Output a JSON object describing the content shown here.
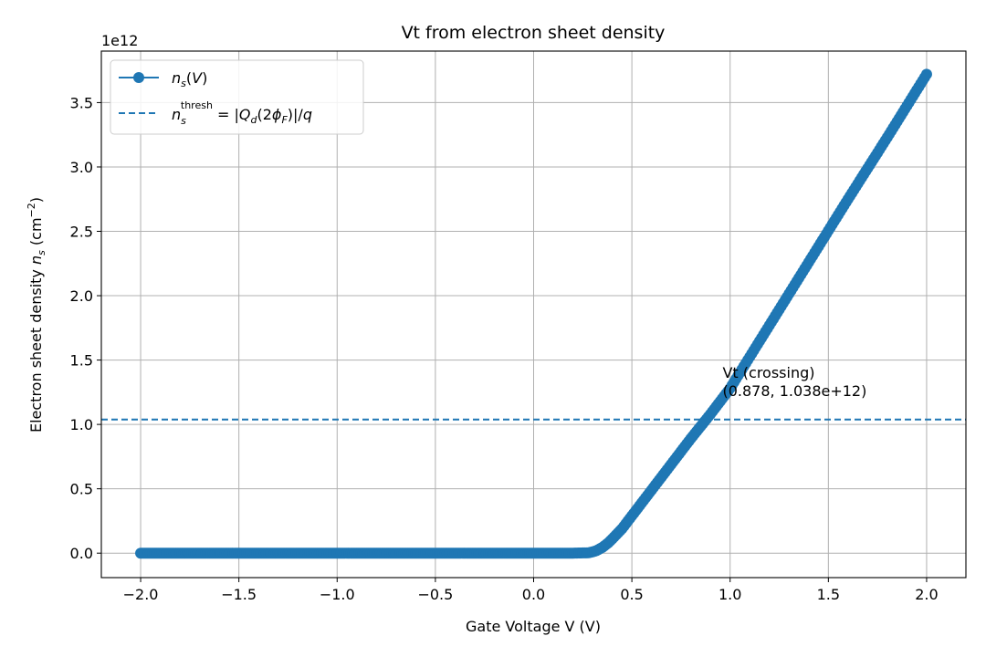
{
  "chart_data": {
    "type": "line",
    "title": "Vt from electron sheet density",
    "xlabel": "Gate Voltage V (V)",
    "ylabel": "Electron sheet density n_s (cm^-2)",
    "y_offset_label": "1e12",
    "xlim": [
      -2.2,
      2.2
    ],
    "ylim": [
      -190000000000.0,
      3900000000000.0
    ],
    "x_ticks": [
      -2.0,
      -1.5,
      -1.0,
      -0.5,
      0.0,
      0.5,
      1.0,
      1.5,
      2.0
    ],
    "x_tick_labels": [
      "−2.0",
      "−1.5",
      "−1.0",
      "−0.5",
      "0.0",
      "0.5",
      "1.0",
      "1.5",
      "2.0"
    ],
    "y_ticks": [
      0.0,
      500000000000.0,
      1000000000000.0,
      1500000000000.0,
      2000000000000.0,
      2500000000000.0,
      3000000000000.0,
      3500000000000.0
    ],
    "y_tick_labels": [
      "0.0",
      "0.5",
      "1.0",
      "1.5",
      "2.0",
      "2.5",
      "3.0",
      "3.5"
    ],
    "grid": true,
    "legend_position": "upper-left",
    "series": [
      {
        "name": "n_s(V)",
        "color": "#1f77b4",
        "style": "line-with-markers",
        "x": [
          -2.0,
          -1.5,
          -1.0,
          -0.5,
          0.0,
          0.2,
          0.28,
          0.3,
          0.32,
          0.35,
          0.38,
          0.4,
          0.45,
          0.5,
          0.55,
          0.6,
          0.7,
          0.8,
          0.878,
          0.9,
          1.0,
          1.2,
          1.4,
          1.6,
          1.8,
          2.0
        ],
        "y": [
          0,
          0,
          0,
          0,
          0,
          0,
          3000000000.0,
          10000000000.0,
          20000000000.0,
          45000000000.0,
          80000000000.0,
          110000000000.0,
          190000000000.0,
          290000000000.0,
          390000000000.0,
          490000000000.0,
          690000000000.0,
          890000000000.0,
          1038000000000.0,
          1080000000000.0,
          1280000000000.0,
          1770000000000.0,
          2260000000000.0,
          2750000000000.0,
          3230000000000.0,
          3720000000000.0
        ]
      }
    ],
    "threshold": {
      "name": "n_s^thresh = |Q_d(2φ_F)|/q",
      "value": 1038000000000.0,
      "color": "#1f77b4",
      "style": "dashed"
    },
    "annotation": {
      "line1": "Vt (crossing)",
      "line2": "(0.878, 1.038e+12)",
      "x": 0.878,
      "y": 1038000000000.0
    }
  }
}
